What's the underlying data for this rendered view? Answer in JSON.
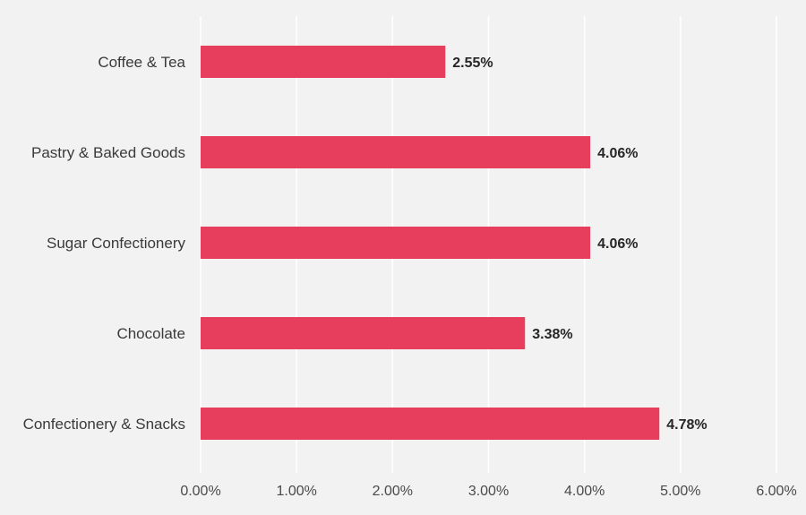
{
  "chart_data": {
    "type": "bar",
    "orientation": "horizontal",
    "categories": [
      "Coffee & Tea",
      "Pastry & Baked Goods",
      "Sugar Confectionery",
      "Chocolate",
      "Confectionery & Snacks"
    ],
    "values": [
      2.55,
      4.06,
      4.06,
      3.38,
      4.78
    ],
    "value_labels": [
      "2.55%",
      "4.06%",
      "4.06%",
      "3.38%",
      "4.78%"
    ],
    "xlim": [
      0,
      6
    ],
    "x_ticks": [
      0,
      1,
      2,
      3,
      4,
      5,
      6
    ],
    "x_tick_labels": [
      "0.00%",
      "1.00%",
      "2.00%",
      "3.00%",
      "4.00%",
      "5.00%",
      "6.00%"
    ],
    "grid": true,
    "legend": "none",
    "bar_color": "#e63e5c",
    "title": "",
    "xlabel": "",
    "ylabel": ""
  }
}
